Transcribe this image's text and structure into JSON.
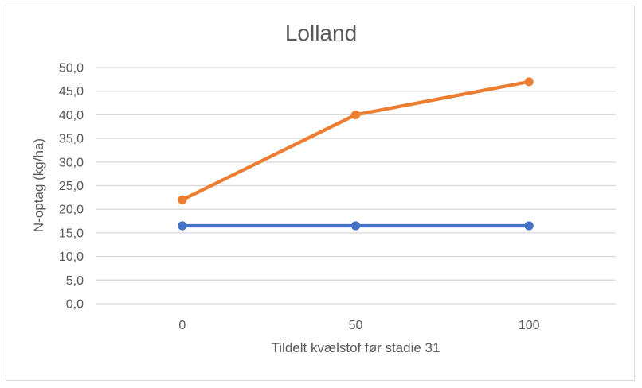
{
  "chart_data": {
    "type": "line",
    "title": "Lolland",
    "xlabel": "Tildelt kvælstof før stadie 31",
    "ylabel": "N-optag (kg/ha)",
    "categories": [
      "0",
      "50",
      "100"
    ],
    "series": [
      {
        "name": "blue-series",
        "color": "#4472C4",
        "values": [
          16.5,
          16.5,
          16.5
        ]
      },
      {
        "name": "orange-series",
        "color": "#ED7D31",
        "values": [
          22.0,
          40.0,
          47.0
        ]
      }
    ],
    "ylim": [
      0,
      50
    ],
    "ytick_step": 5,
    "ytick_labels": [
      "0,0",
      "5,0",
      "10,0",
      "15,0",
      "20,0",
      "25,0",
      "30,0",
      "35,0",
      "40,0",
      "45,0",
      "50,0"
    ],
    "grid": true,
    "legend": "none",
    "gridline_color": "#D9D9D9",
    "text_color": "#595959",
    "frame_border_color": "#D9D9D9"
  }
}
